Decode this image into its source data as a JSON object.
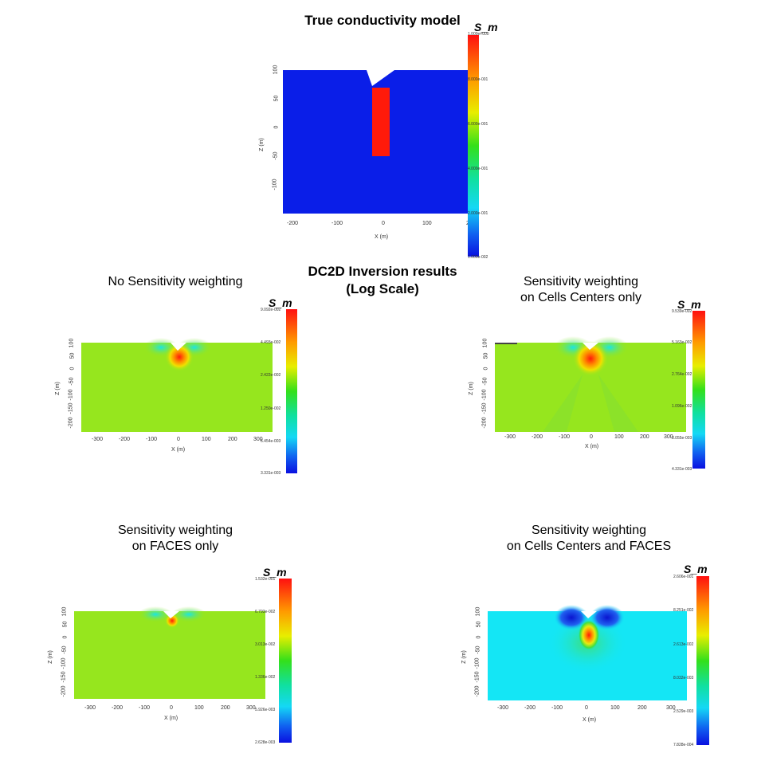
{
  "headings": {
    "true_model_title": "True conductivity model",
    "inversion_title_line1": "DC2D Inversion results",
    "inversion_title_line2": "(Log Scale)"
  },
  "panels": {
    "true_model": {
      "colorbar_title": "S_m",
      "colorbar_labels": [
        "1.000e+000",
        "8.000e-001",
        "6.000e-001",
        "4.000e-001",
        "2.000e-001",
        "1.000e-002"
      ],
      "x_ticks": [
        "-200",
        "-100",
        "0",
        "100",
        "200"
      ],
      "z_ticks": [
        "100",
        "50",
        "0",
        "-50",
        "-100"
      ],
      "xlabel": "X (m)",
      "zlabel": "Z (m)"
    },
    "no_weighting": {
      "caption_line1": "No Sensitivity weighting",
      "caption_line2": "",
      "colorbar_title": "S_m",
      "colorbar_labels": [
        "9.092e-002",
        "4.493e-002",
        "2.422e-002",
        "1.250e-002",
        "6.454e-003",
        "3.331e-003"
      ],
      "x_ticks": [
        "-300",
        "-200",
        "-100",
        "0",
        "100",
        "200",
        "300"
      ],
      "z_ticks": [
        "100",
        "50",
        "0",
        "-50",
        "-100",
        "-150",
        "-200"
      ],
      "xlabel": "X (m)",
      "zlabel": "Z (m)"
    },
    "cells_only": {
      "caption_line1": "Sensitivity weighting",
      "caption_line2": "on Cells Centers only",
      "colorbar_title": "S_m",
      "colorbar_labels": [
        "9.539e-002",
        "5.163e-002",
        "2.764e-002",
        "1.096e-002",
        "8.055e-003",
        "4.331e-003"
      ],
      "x_ticks": [
        "-300",
        "-200",
        "-100",
        "0",
        "100",
        "200",
        "300"
      ],
      "z_ticks": [
        "100",
        "50",
        "0",
        "-50",
        "-100",
        "-150",
        "-200"
      ],
      "xlabel": "X (m)",
      "zlabel": "Z (m)"
    },
    "faces_only": {
      "caption_line1": "Sensitivity weighting",
      "caption_line2": "on FACES  only",
      "colorbar_title": "S_m",
      "colorbar_labels": [
        "1.532e-001",
        "6.793e-002",
        "3.013e-002",
        "1.336e-002",
        "5.926e-003",
        "2.628e-003"
      ],
      "x_ticks": [
        "-300",
        "-200",
        "-100",
        "0",
        "100",
        "200",
        "300"
      ],
      "z_ticks": [
        "100",
        "50",
        "0",
        "-50",
        "-100",
        "-150",
        "-200"
      ],
      "xlabel": "X (m)",
      "zlabel": "Z (m)"
    },
    "cells_and_faces": {
      "caption_line1": "Sensitivity weighting",
      "caption_line2": "on Cells Centers and FACES",
      "colorbar_title": "S_m",
      "colorbar_labels": [
        "2.606e-001",
        "8.251e-002",
        "2.613e-002",
        "8.032e-003",
        "2.529e-003",
        "7.828e-004"
      ],
      "x_ticks": [
        "-300",
        "-200",
        "-100",
        "0",
        "100",
        "200",
        "300"
      ],
      "z_ticks": [
        "100",
        "50",
        "0",
        "-50",
        "-100",
        "-150",
        "-200"
      ],
      "xlabel": "X (m)",
      "zlabel": "Z (m)"
    }
  },
  "colors": {
    "deep_blue": "#0a1ee8",
    "red": "#ff1a0a",
    "yellow_green": "#96e61e",
    "cyan": "#14e6f5"
  }
}
